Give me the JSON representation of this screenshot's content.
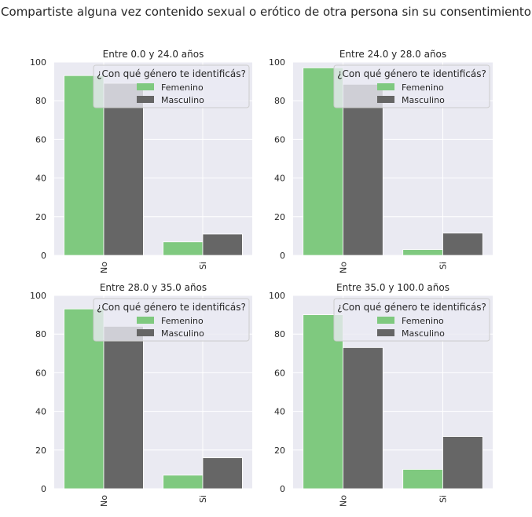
{
  "figure": {
    "suptitle": "¿Compartiste alguna vez contenido sexual o erótico de otra persona sin su consentimiento?"
  },
  "colors": {
    "background": "#ffffff",
    "plot_bg": "#eaeaf2",
    "grid": "#ffffff",
    "Femenino": "#7fc97f",
    "Masculino": "#666666",
    "text": "#262626",
    "legend_bg": "#eaeaf2",
    "legend_border": "#cccccc"
  },
  "chart_data": [
    {
      "type": "bar",
      "title": "Entre 0.0 y 24.0 años",
      "categories": [
        "No",
        "Si"
      ],
      "series": [
        {
          "name": "Femenino",
          "values": [
            93,
            7
          ]
        },
        {
          "name": "Masculino",
          "values": [
            89,
            11
          ]
        }
      ],
      "ylim": [
        0,
        100
      ],
      "yticks": [
        "0",
        "20",
        "40",
        "60",
        "80",
        "100"
      ],
      "legend": {
        "title": "¿Con qué género te identificás?",
        "placement": "upper-right"
      },
      "grid": true
    },
    {
      "type": "bar",
      "title": "Entre 24.0 y 28.0 años",
      "categories": [
        "No",
        "Si"
      ],
      "series": [
        {
          "name": "Femenino",
          "values": [
            97,
            3
          ]
        },
        {
          "name": "Masculino",
          "values": [
            88.5,
            11.5
          ]
        }
      ],
      "ylim": [
        0,
        100
      ],
      "yticks": [
        "0",
        "20",
        "40",
        "60",
        "80",
        "100"
      ],
      "legend": {
        "title": "¿Con qué género te identificás?",
        "placement": "upper-right"
      },
      "grid": true
    },
    {
      "type": "bar",
      "title": "Entre 28.0 y 35.0 años",
      "categories": [
        "No",
        "Si"
      ],
      "series": [
        {
          "name": "Femenino",
          "values": [
            93,
            7
          ]
        },
        {
          "name": "Masculino",
          "values": [
            84,
            16
          ]
        }
      ],
      "ylim": [
        0,
        100
      ],
      "yticks": [
        "0",
        "20",
        "40",
        "60",
        "80",
        "100"
      ],
      "legend": {
        "title": "¿Con qué género te identificás?",
        "placement": "upper-right"
      },
      "grid": true
    },
    {
      "type": "bar",
      "title": "Entre 35.0 y 100.0 años",
      "categories": [
        "No",
        "Si"
      ],
      "series": [
        {
          "name": "Femenino",
          "values": [
            90,
            10
          ]
        },
        {
          "name": "Masculino",
          "values": [
            73,
            27
          ]
        }
      ],
      "ylim": [
        0,
        100
      ],
      "yticks": [
        "0",
        "20",
        "40",
        "60",
        "80",
        "100"
      ],
      "legend": {
        "title": "¿Con qué género te identificás?",
        "placement": "upper-right"
      },
      "grid": true
    }
  ]
}
